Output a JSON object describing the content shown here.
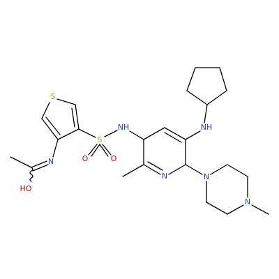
{
  "molecule": {
    "atoms": [
      {
        "label": "S"
      },
      {
        "label": "N"
      },
      {
        "label": "HO"
      },
      {
        "label": "S"
      },
      {
        "label": "O"
      },
      {
        "label": "O"
      },
      {
        "label": "NH"
      },
      {
        "label": "NH"
      },
      {
        "label": "N"
      },
      {
        "label": "N"
      },
      {
        "label": "N"
      }
    ]
  }
}
